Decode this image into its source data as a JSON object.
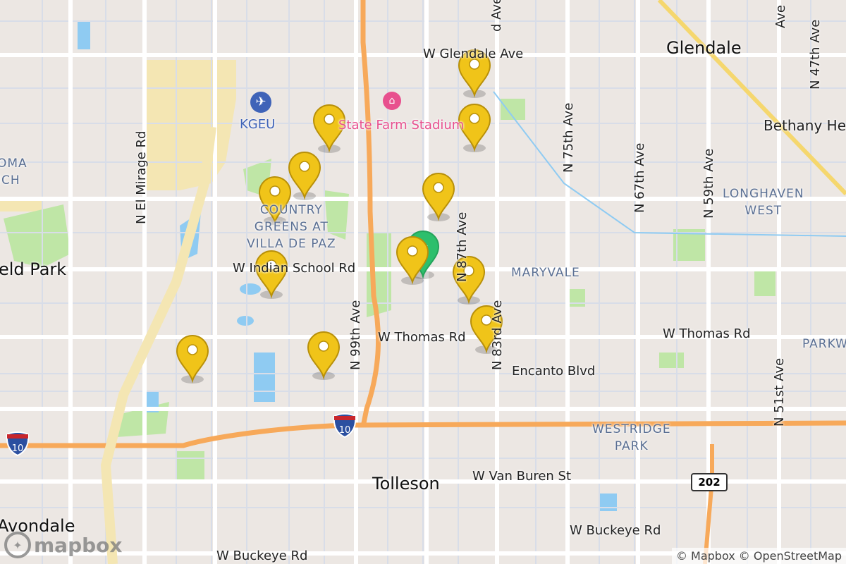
{
  "map": {
    "provider_logo": "mapbox",
    "attribution": "© Mapbox © OpenStreetMap",
    "colors": {
      "land": "#ece7e3",
      "road": "#ffffff",
      "freeway": "#f7a95a",
      "highway": "#f5d76e",
      "park": "#bfe6a6",
      "water": "#8fcbf2",
      "marker": "#f0c419",
      "marker_selected": "#2dbf6c"
    },
    "labels": {
      "glendale": "Glendale",
      "tolleson": "Tolleson",
      "avondale": "Avondale",
      "field_park": "eld Park",
      "bethany": "Bethany He",
      "glendale_ave": "W Glendale Ave",
      "indian_school": "W Indian School Rd",
      "thomas_w": "W Thomas Rd",
      "thomas_e": "W Thomas Rd",
      "encanto": "Encanto Blvd",
      "van_buren": "W Van Buren St",
      "buckeye_w": "W Buckeye Rd",
      "buckeye_e": "W Buckeye Rd",
      "el_mirage": "N El Mirage Rd",
      "ave99": "N 99th Ave",
      "ave87": "N 87th Ave",
      "ave83": "N 83rd Ave",
      "ave91": "d Ave",
      "ave75": "N 75th Ave",
      "ave67": "N 67th Ave",
      "ave59": "N 59th Ave",
      "ave51": "N 51st Ave",
      "ave47": "N 47th Ave",
      "ave55": "Ave",
      "maryvale": "MARYVALE",
      "longhaven": "LONGHAVEN\nWEST",
      "westridge": "WESTRIDGE\nPARK",
      "country_greens": "COUNTRY\nGREENS AT\nVILLA DE PAZ",
      "parkw": "PARKW",
      "roma": "OMA\nICH",
      "stadium": "State Farm Stadium",
      "airport": "KGEU",
      "i10_a": "10",
      "i10_b": "10",
      "sr202": "202"
    },
    "markers": {
      "count": 12,
      "selected_count": 1,
      "icons": [
        "map-pin-icon",
        "star-icon"
      ]
    }
  }
}
